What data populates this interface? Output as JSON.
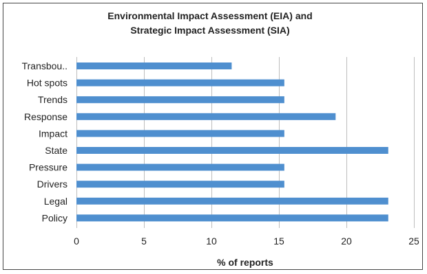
{
  "chart_data": {
    "type": "bar",
    "orientation": "horizontal",
    "title_lines": [
      "Environmental Impact Assessment (EIA) and",
      "Strategic Impact Assessment (SIA)"
    ],
    "categories": [
      "Transbou..",
      "Hot spots",
      "Trends",
      "Response",
      "Impact",
      "State",
      "Pressure",
      "Drivers",
      "Legal",
      "Policy"
    ],
    "values": [
      11.5,
      15.4,
      15.4,
      19.2,
      15.4,
      23.1,
      15.4,
      15.4,
      23.1,
      23.1
    ],
    "xlabel": "% of reports",
    "ylabel": "",
    "xlim": [
      0,
      25
    ],
    "xticks": [
      "0",
      "5",
      "10",
      "15",
      "20",
      "25"
    ],
    "grid": "vertical",
    "legend": "none",
    "bar_color": "#4f8fcf"
  }
}
